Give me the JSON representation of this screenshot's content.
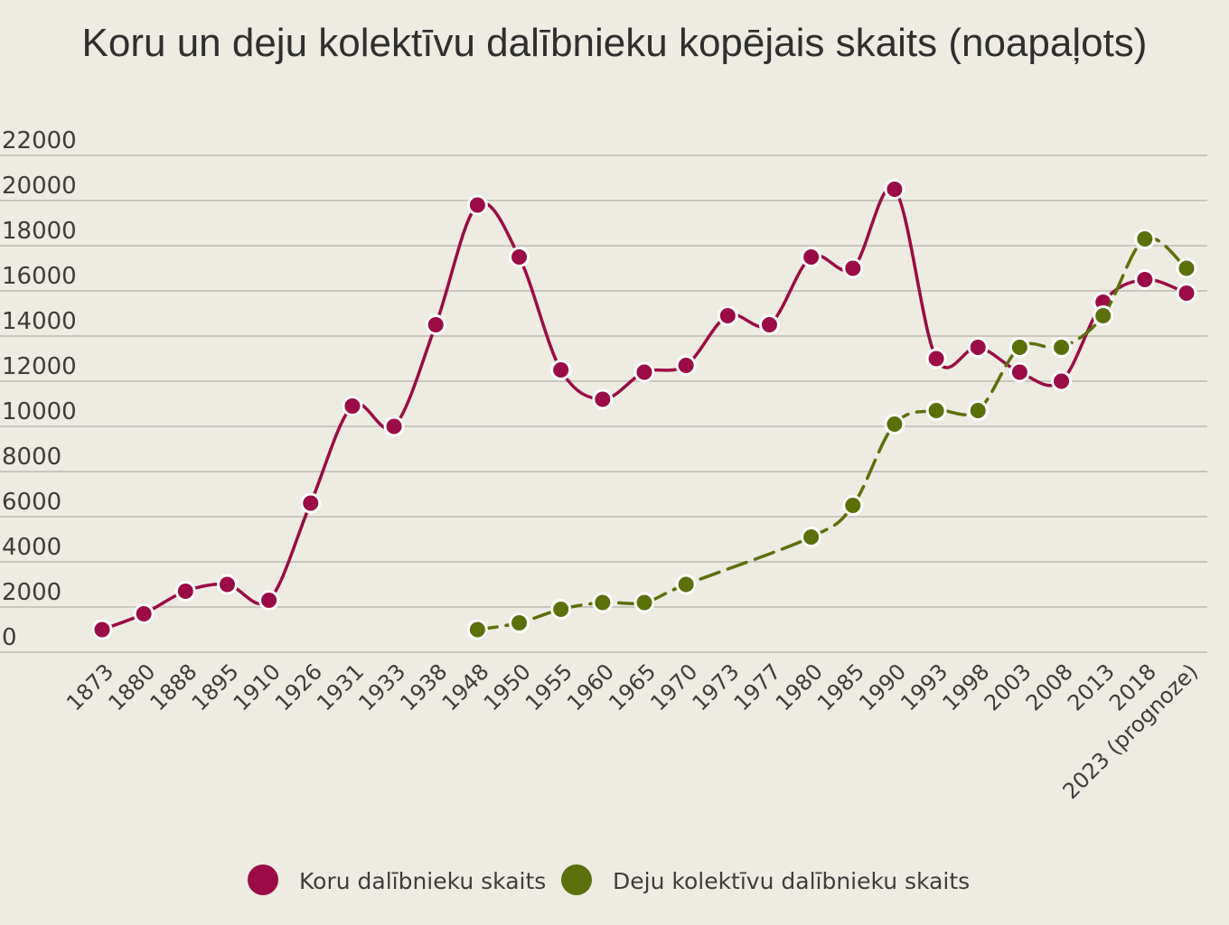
{
  "chart_data": {
    "type": "line",
    "title": "Koru un deju kolektīvu dalībnieku kopējais skaits (noapaļots)",
    "xlabel": "",
    "ylabel": "",
    "ylim": [
      0,
      22000
    ],
    "yticks": [
      0,
      2000,
      4000,
      6000,
      8000,
      10000,
      12000,
      14000,
      16000,
      18000,
      20000,
      22000
    ],
    "grid": true,
    "legend_position": "bottom",
    "categories": [
      "1873",
      "1880",
      "1888",
      "1895",
      "1910",
      "1926",
      "1931",
      "1933",
      "1938",
      "1948",
      "1950",
      "1955",
      "1960",
      "1965",
      "1970",
      "1973",
      "1977",
      "1980",
      "1985",
      "1990",
      "1993",
      "1998",
      "2003",
      "2008",
      "2013",
      "2018",
      "2023 (prognoze)"
    ],
    "series": [
      {
        "name": "Koru dalībnieku skaits",
        "color": "#9b0b45",
        "dashed": false,
        "values": [
          1000,
          1700,
          2700,
          3000,
          2300,
          6600,
          10900,
          10000,
          14500,
          19800,
          17500,
          12500,
          11200,
          12400,
          12700,
          14900,
          14500,
          17500,
          17000,
          20500,
          13000,
          13500,
          12400,
          12000,
          15500,
          16500,
          15900
        ]
      },
      {
        "name": "Deju kolektīvu dalībnieku skaits",
        "color": "#5b7009",
        "dashed": true,
        "values": [
          null,
          null,
          null,
          null,
          null,
          null,
          null,
          null,
          null,
          1000,
          1300,
          1900,
          2200,
          2200,
          3000,
          null,
          null,
          5100,
          6500,
          10100,
          10700,
          10700,
          13500,
          13500,
          14900,
          18300,
          17000
        ]
      }
    ]
  }
}
